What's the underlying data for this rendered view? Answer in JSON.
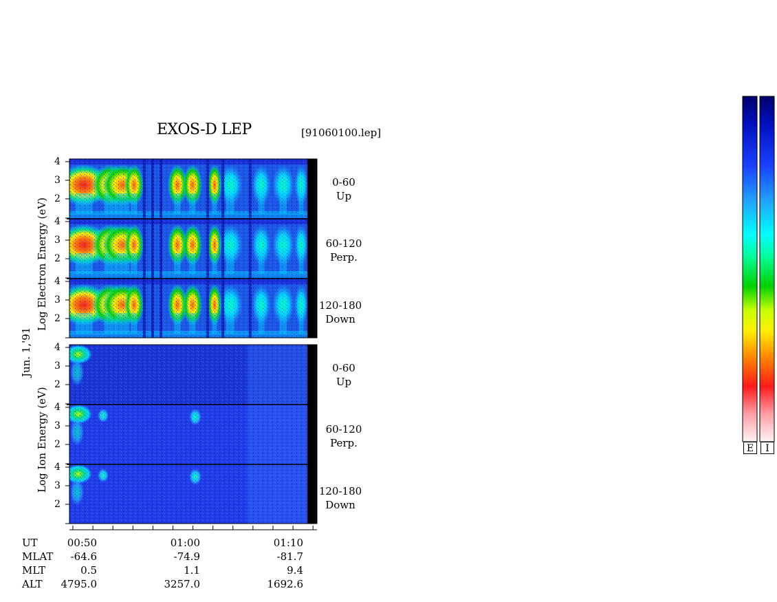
{
  "header": {
    "title": "EXOS-D LEP",
    "file": "[91060100.lep]"
  },
  "axes": {
    "electron_label": "Log  Electron  Energy  (eV)",
    "ion_label": "Log  Ion  Energy  (eV)",
    "date": "Jun. 1,'91",
    "y_ticks": [
      "4",
      "3",
      "2"
    ]
  },
  "panels": {
    "electron": [
      {
        "range": "0-60",
        "dir": "Up"
      },
      {
        "range": "60-120",
        "dir": "Perp."
      },
      {
        "range": "120-180",
        "dir": "Down"
      }
    ],
    "ion": [
      {
        "range": "0-60",
        "dir": "Up"
      },
      {
        "range": "60-120",
        "dir": "Perp."
      },
      {
        "range": "120-180",
        "dir": "Down"
      }
    ]
  },
  "footer": {
    "rows": [
      {
        "label": "UT",
        "values": [
          "00:50",
          "01:00",
          "01:10"
        ]
      },
      {
        "label": "MLAT",
        "values": [
          "-64.6",
          "-74.9",
          "-81.7"
        ]
      },
      {
        "label": "MLT",
        "values": [
          "0.5",
          "1.1",
          "9.4"
        ]
      },
      {
        "label": "ALT",
        "values": [
          "4795.0",
          "3257.0",
          "1692.6"
        ]
      }
    ]
  },
  "colorbars": [
    {
      "label": "E"
    },
    {
      "label": "I"
    }
  ],
  "colors": {
    "background": "#1a2fd8",
    "scale": [
      "#fff4f4",
      "#ff9ea6",
      "#ff1a1a",
      "#ff8000",
      "#ffee00",
      "#c8ff00",
      "#00d000",
      "#00ffa0",
      "#00ffff",
      "#20a0ff",
      "#1a40ff",
      "#0010c0",
      "#00006a"
    ]
  },
  "chart_data": {
    "type": "heatmap",
    "title": "EXOS-D LEP",
    "subtitle": "[91060100.lep]",
    "date": "Jun. 1,'91",
    "x_ticks": [
      "00:50",
      "01:00",
      "01:10"
    ],
    "x_range_ut": [
      "00:49",
      "01:13"
    ],
    "y_range_log_energy_eV": [
      1,
      4
    ],
    "ephemeris": {
      "UT": [
        "00:50",
        "01:00",
        "01:10"
      ],
      "MLAT": [
        -64.6,
        -74.9,
        -81.7
      ],
      "MLT": [
        0.5,
        1.1,
        9.4
      ],
      "ALT": [
        4795.0,
        3257.0,
        1692.6
      ]
    },
    "panels": [
      {
        "species": "Electron",
        "pitch_angle": "0-60",
        "direction": "Up"
      },
      {
        "species": "Electron",
        "pitch_angle": "60-120",
        "direction": "Perp."
      },
      {
        "species": "Electron",
        "pitch_angle": "120-180",
        "direction": "Down"
      },
      {
        "species": "Ion",
        "pitch_angle": "0-60",
        "direction": "Up"
      },
      {
        "species": "Ion",
        "pitch_angle": "60-120",
        "direction": "Perp."
      },
      {
        "species": "Ion",
        "pitch_angle": "120-180",
        "direction": "Down"
      }
    ],
    "colorbar_labels": [
      "E",
      "I"
    ]
  }
}
